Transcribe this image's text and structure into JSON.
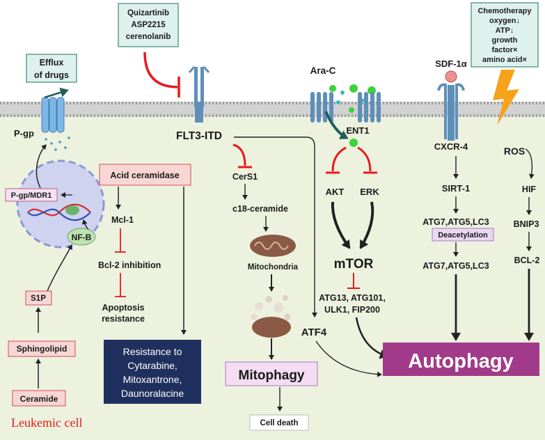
{
  "colors": {
    "cell": "#edf2df",
    "membrane": "#c7c7c7",
    "inhibit": "#e8191b",
    "box_teal": "#dff1ec",
    "box_teal_border": "#3b8a74",
    "pink_box": "#f8d6d6",
    "pink_border": "#d04b55",
    "lilac_box": "#ead8f2",
    "lilac_border": "#a47ab8",
    "navy": "#20305e",
    "autophagy": "#a13b89",
    "mitophagy_box": "#f4dcf3",
    "leukemic_label": "#e8191b"
  },
  "labels": {
    "inhibitors": [
      "Quizartinib",
      "ASP2215",
      "cerenolanib"
    ],
    "efflux": [
      "Efflux",
      "of drugs"
    ],
    "pgp": "P-gp",
    "flt3": "FLT3-ITD",
    "arac": "Ara-C",
    "ent1": "ENT1",
    "sdf": "SDF-1α",
    "stress": [
      "Chemotherapy",
      "oxygen↓",
      "ATP↓",
      "growth",
      "factor×",
      "amino acid×"
    ],
    "pgp_mdr1": "P-gp/MDR1",
    "nfb": "NF-B",
    "s1p": "S1P",
    "sphingolipid": "Sphingolipid",
    "ceramide": "Ceramide",
    "leukemic": "Leukemic cell",
    "acid_ceramidase": "Acid ceramidase",
    "mcl1": "Mcl-1",
    "bcl2_inhibition": "Bcl-2 inhibition",
    "apoptosis": [
      "Apoptosis",
      "resistance"
    ],
    "resistance": [
      "Resistance to",
      "Cytarabine,",
      "Mitoxantrone,",
      "Daunoralacine"
    ],
    "cers1": "CerS1",
    "c18": "c18-ceramide",
    "mitochondria": "Mitochondria",
    "mitophagy": "Mitophagy",
    "cell_death": "Cell death",
    "akt": "AKT",
    "erk": "ERK",
    "mtor": "mTOR",
    "atg_complex": [
      "ATG13, ATG101,",
      "ULK1, FIP200"
    ],
    "atf4": "ATF4",
    "autophagy": "Autophagy",
    "cxcr4": "CXCR-4",
    "sirt1": "SIRT-1",
    "atg_top": "ATG7,ATG5,LC3",
    "deacetylation": "Deacetylation",
    "atg_bottom": "ATG7,ATG5,LC3",
    "ros": "ROS",
    "hif": "HIF",
    "bnip3": "BNIP3",
    "bcl2": "BCL-2"
  }
}
